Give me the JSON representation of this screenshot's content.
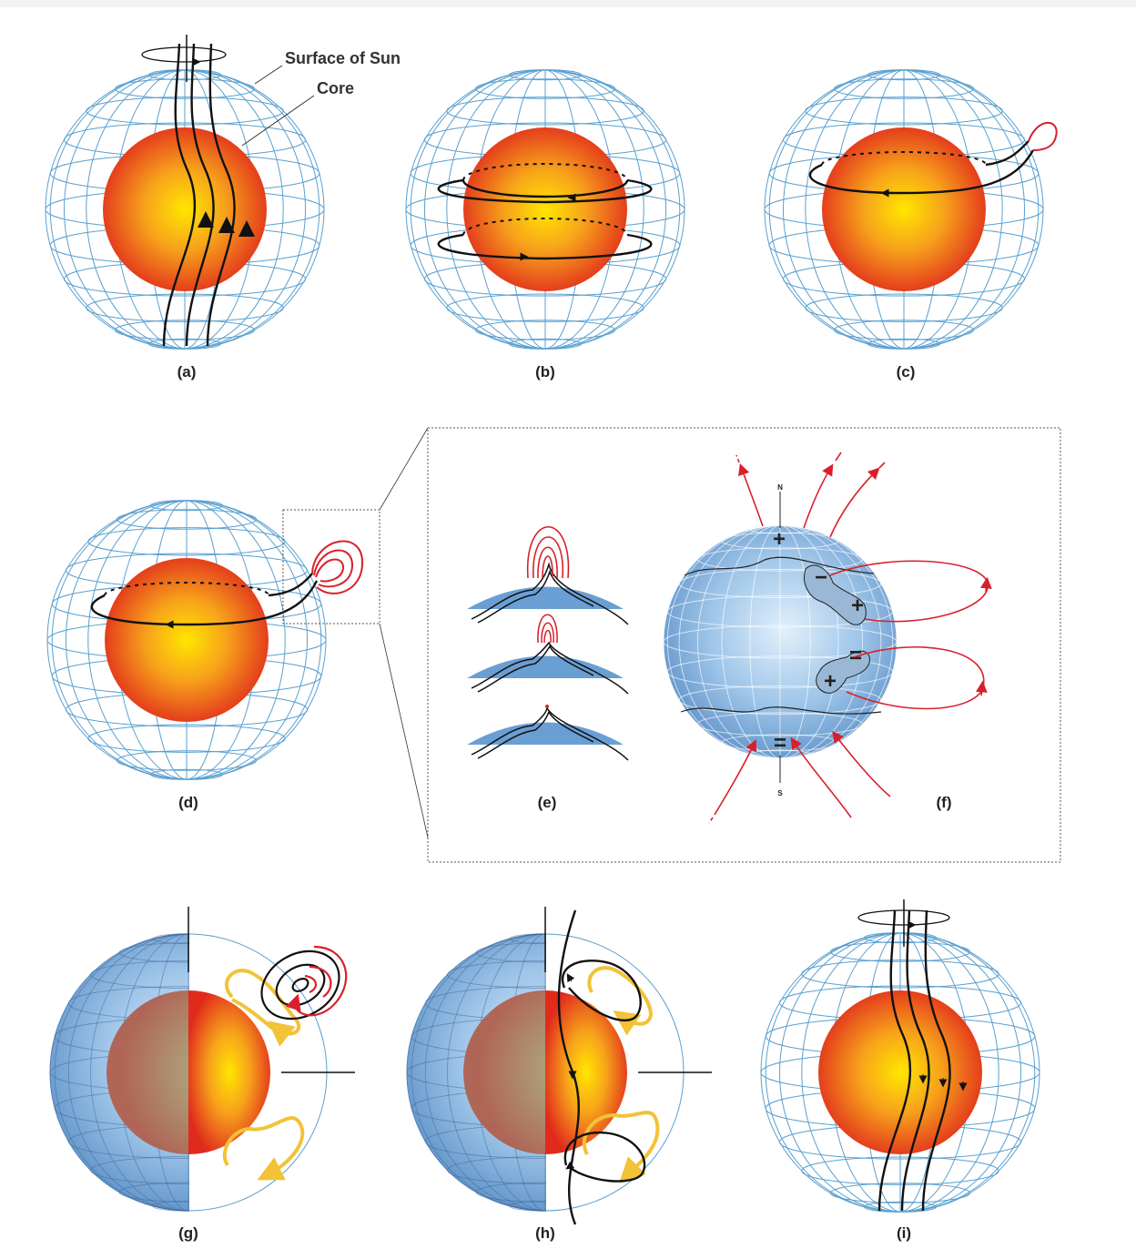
{
  "annotations": {
    "surface": "Surface of Sun",
    "core": "Core"
  },
  "panels": [
    {
      "id": "a",
      "label": "(a)"
    },
    {
      "id": "b",
      "label": "(b)"
    },
    {
      "id": "c",
      "label": "(c)"
    },
    {
      "id": "d",
      "label": "(d)"
    },
    {
      "id": "e",
      "label": "(e)"
    },
    {
      "id": "f",
      "label": "(f)"
    },
    {
      "id": "g",
      "label": "(g)"
    },
    {
      "id": "h",
      "label": "(h)"
    },
    {
      "id": "i",
      "label": "(i)"
    }
  ],
  "poles": {
    "north": "N",
    "south": "S"
  },
  "signs": {
    "plus": "+",
    "minus": "−",
    "double_minus": "="
  },
  "colors": {
    "grid": "#5aa0d0",
    "field_line": "#111111",
    "loop": "#d9202a",
    "flow": "#f2c237",
    "core_center": "#ffd400",
    "core_edge": "#e5321c",
    "surface_blue": "#6aa2d8"
  }
}
